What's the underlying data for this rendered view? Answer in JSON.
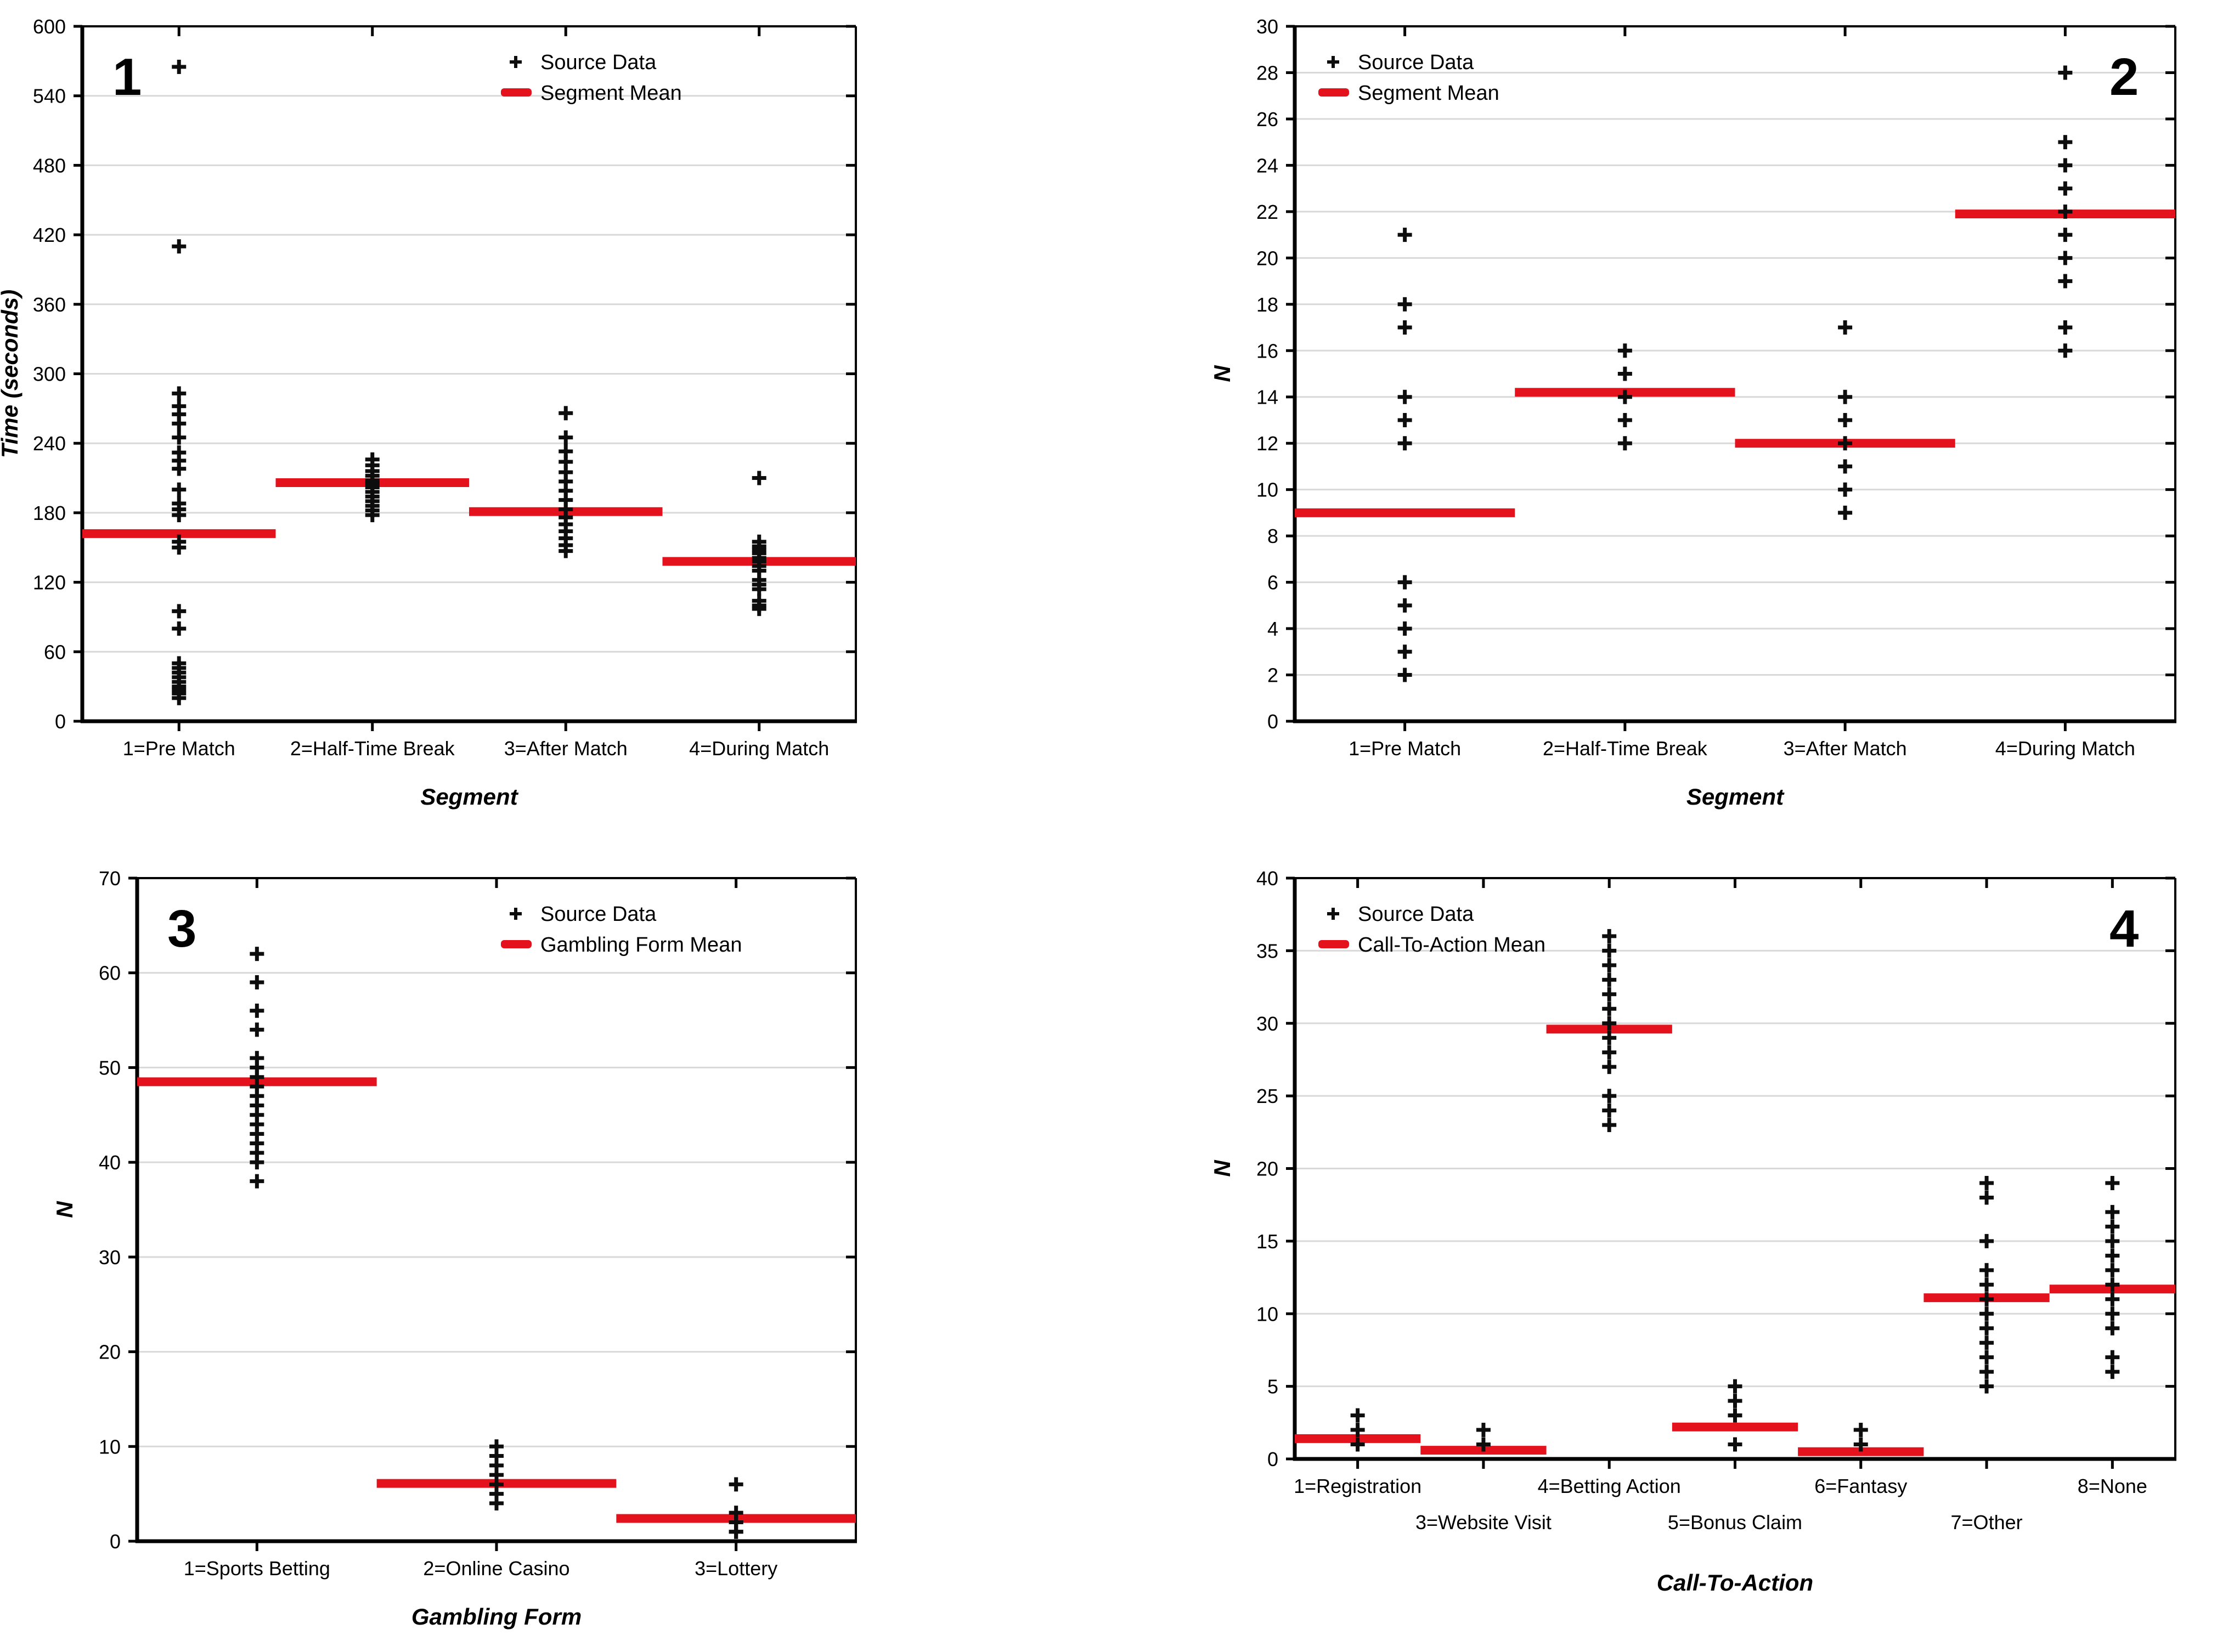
{
  "page": {
    "background": "#ffffff"
  },
  "colors": {
    "mean_line": "#e4121c",
    "marker": "#0d0d0d",
    "grid": "#d9d9d9",
    "axis": "#000000"
  },
  "legend_source_label": "Source Data",
  "chart_data": [
    {
      "type": "scatter",
      "panel_number": "1",
      "title": "",
      "xlabel": "Segment",
      "ylabel": "Time (seconds)",
      "ylim": [
        0,
        600
      ],
      "yticks": [
        0,
        60,
        120,
        180,
        240,
        300,
        360,
        420,
        480,
        540,
        600
      ],
      "grid": true,
      "legend_position": "top-right",
      "panel_number_position": "top-left",
      "legend": {
        "source_label": "Source Data",
        "mean_label": "Segment Mean"
      },
      "categories": [
        "1=Pre Match",
        "2=Half-Time Break",
        "3=After Match",
        "4=During Match"
      ],
      "label_rows": [
        0,
        0,
        0,
        0
      ],
      "series": [
        {
          "name": "1=Pre Match",
          "mean": 162,
          "values": [
            565,
            410,
            283,
            272,
            265,
            257,
            245,
            232,
            225,
            218,
            200,
            188,
            183,
            178,
            155,
            150,
            95,
            80,
            50,
            46,
            42,
            38,
            34,
            30,
            27,
            24,
            20
          ]
        },
        {
          "name": "2=Half-Time Break",
          "mean": 206,
          "values": [
            226,
            221,
            216,
            212,
            208,
            205,
            202,
            198,
            194,
            190,
            186,
            182,
            178
          ]
        },
        {
          "name": "3=After Match",
          "mean": 181,
          "values": [
            266,
            245,
            233,
            224,
            215,
            207,
            199,
            191,
            183,
            176,
            170,
            164,
            158,
            152,
            147
          ]
        },
        {
          "name": "4=During Match",
          "mean": 138,
          "values": [
            210,
            155,
            151,
            148,
            145,
            141,
            138,
            134,
            130,
            122,
            118,
            114,
            104,
            100,
            97
          ]
        }
      ]
    },
    {
      "type": "scatter",
      "panel_number": "2",
      "title": "",
      "xlabel": "Segment",
      "ylabel": "N",
      "ylim": [
        0,
        30
      ],
      "yticks": [
        0,
        2,
        4,
        6,
        8,
        10,
        12,
        14,
        16,
        18,
        20,
        22,
        24,
        26,
        28,
        30
      ],
      "grid": true,
      "legend_position": "top-left",
      "panel_number_position": "top-right",
      "legend": {
        "source_label": "Source Data",
        "mean_label": "Segment Mean"
      },
      "categories": [
        "1=Pre Match",
        "2=Half-Time Break",
        "3=After Match",
        "4=During Match"
      ],
      "label_rows": [
        0,
        0,
        0,
        0
      ],
      "series": [
        {
          "name": "1=Pre Match",
          "mean": 9,
          "values": [
            21,
            18,
            17,
            14,
            13,
            12,
            6,
            5,
            4,
            3,
            2
          ]
        },
        {
          "name": "2=Half-Time Break",
          "mean": 14.2,
          "values": [
            16,
            15,
            14,
            13,
            12
          ]
        },
        {
          "name": "3=After Match",
          "mean": 12,
          "values": [
            17,
            14,
            13,
            12,
            11,
            10,
            9
          ]
        },
        {
          "name": "4=During Match",
          "mean": 21.9,
          "values": [
            28,
            25,
            24,
            23,
            22,
            21,
            20,
            19,
            17,
            16
          ]
        }
      ]
    },
    {
      "type": "scatter",
      "panel_number": "3",
      "title": "",
      "xlabel": "Gambling Form",
      "ylabel": "N",
      "ylim": [
        0,
        70
      ],
      "yticks": [
        0,
        10,
        20,
        30,
        40,
        50,
        60,
        70
      ],
      "grid": true,
      "legend_position": "top-right",
      "panel_number_position": "top-left",
      "legend": {
        "source_label": "Source Data",
        "mean_label": "Gambling Form Mean"
      },
      "categories": [
        "1=Sports Betting",
        "2=Online Casino",
        "3=Lottery"
      ],
      "label_rows": [
        0,
        0,
        0
      ],
      "series": [
        {
          "name": "1=Sports Betting",
          "mean": 48.5,
          "values": [
            62,
            59,
            56,
            54,
            51,
            50,
            49,
            48,
            47,
            46,
            45,
            44,
            43,
            42,
            41,
            40,
            38
          ]
        },
        {
          "name": "2=Online Casino",
          "mean": 6.1,
          "values": [
            10,
            9,
            8,
            7,
            6,
            5,
            4
          ]
        },
        {
          "name": "3=Lottery",
          "mean": 2.4,
          "values": [
            6,
            3,
            2,
            2,
            1,
            1
          ]
        }
      ]
    },
    {
      "type": "scatter",
      "panel_number": "4",
      "title": "",
      "xlabel": "Call-To-Action",
      "ylabel": "N",
      "ylim": [
        0,
        40
      ],
      "yticks": [
        0,
        5,
        10,
        15,
        20,
        25,
        30,
        35,
        40
      ],
      "grid": true,
      "legend_position": "top-left",
      "panel_number_position": "top-right",
      "legend": {
        "source_label": "Source Data",
        "mean_label": "Call-To-Action Mean"
      },
      "categories": [
        "1=Registration",
        "3=Website Visit",
        "4=Betting Action",
        "5=Bonus Claim",
        "6=Fantasy",
        "7=Other",
        "8=None"
      ],
      "label_rows": [
        0,
        1,
        0,
        1,
        0,
        1,
        0
      ],
      "series": [
        {
          "name": "1=Registration",
          "mean": 1.4,
          "values": [
            3,
            2,
            1
          ]
        },
        {
          "name": "3=Website Visit",
          "mean": 0.6,
          "values": [
            2,
            1
          ]
        },
        {
          "name": "4=Betting Action",
          "mean": 29.6,
          "values": [
            36,
            35,
            34,
            33,
            32,
            31,
            30,
            29,
            28,
            27,
            25,
            24,
            23
          ]
        },
        {
          "name": "5=Bonus Claim",
          "mean": 2.2,
          "values": [
            5,
            4,
            3,
            3,
            1,
            1
          ]
        },
        {
          "name": "6=Fantasy",
          "mean": 0.5,
          "values": [
            2,
            1
          ]
        },
        {
          "name": "7=Other",
          "mean": 11.1,
          "values": [
            19,
            18,
            15,
            13,
            12,
            11,
            10,
            9,
            8,
            7,
            6,
            5
          ]
        },
        {
          "name": "8=None",
          "mean": 11.7,
          "values": [
            19,
            17,
            16,
            15,
            14,
            13,
            12,
            11,
            10,
            9,
            7,
            6
          ]
        }
      ]
    }
  ]
}
